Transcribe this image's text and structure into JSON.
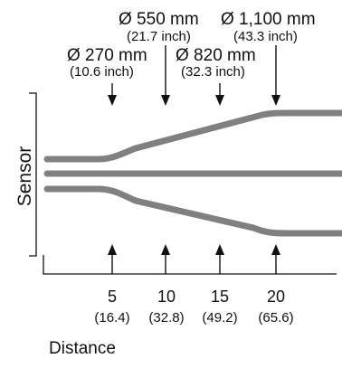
{
  "diameters": [
    {
      "mm": "Ø 270 mm",
      "inch": "(10.6 inch)"
    },
    {
      "mm": "Ø 550 mm",
      "inch": "(21.7 inch)"
    },
    {
      "mm": "Ø 820 mm",
      "inch": "(32.3 inch)"
    },
    {
      "mm": "Ø 1,100 mm",
      "inch": "(43.3 inch)"
    }
  ],
  "sensor_label": "Sensor",
  "distance_label": "Distance",
  "distances": [
    {
      "value": "5",
      "sub": "(16.4)"
    },
    {
      "value": "10",
      "sub": "(32.8)"
    },
    {
      "value": "15",
      "sub": "(49.2)"
    },
    {
      "value": "20",
      "sub": "(65.6)"
    }
  ],
  "colors": {
    "beam": "#808080",
    "ink": "#111111"
  }
}
